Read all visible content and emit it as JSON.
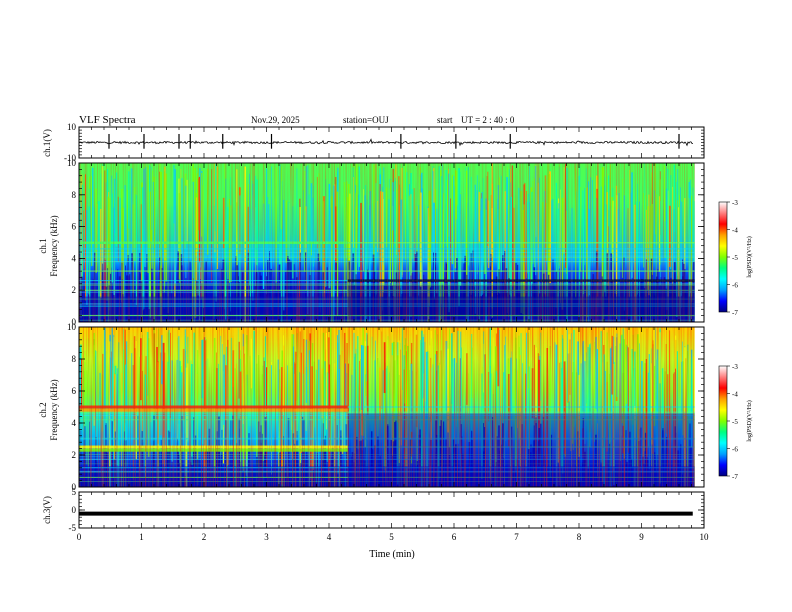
{
  "header": {
    "title": "VLF Spectra",
    "date": "Nov.29, 2025",
    "station": "station=OUJ",
    "start_label": "start",
    "start_ut": "UT =  2 : 40 : 0"
  },
  "colorscale": {
    "stops": [
      "#000080",
      "#0000ff",
      "#00a0ff",
      "#00ffff",
      "#00ff80",
      "#80ff00",
      "#ffff00",
      "#ffa000",
      "#ff0000",
      "#ff8080",
      "#ffffff"
    ]
  },
  "chart_data": [
    {
      "type": "line",
      "name": "ch1-waveform",
      "ylabel": "ch.1(V)",
      "ylim": [
        -10,
        10
      ],
      "yticks": [
        10,
        -10
      ],
      "series_desc": "broadband waveform, near zero with impulsive spikes",
      "spikes_min": [
        0.48,
        1.04,
        1.6,
        1.78,
        2.3,
        3.08,
        5.15,
        6.03,
        6.9,
        9.6
      ]
    },
    {
      "type": "heatmap",
      "name": "ch1-spectrogram",
      "ylabel": "ch.1\nFrequency (kHz)",
      "ylim": [
        0,
        10
      ],
      "yticks": [
        0,
        2,
        4,
        6,
        8,
        10
      ],
      "xlim_min": [
        0,
        9.85
      ],
      "z_label": "log(PSD)(V²/Hz)",
      "zlim": [
        -7,
        -3
      ],
      "z_ticks": [
        -3,
        -4,
        -5,
        -6,
        -7
      ],
      "bands_khz": [
        0.4,
        1.0,
        2.0,
        2.6,
        3.2,
        4.6,
        5.0
      ],
      "step_change_min": 4.3
    },
    {
      "type": "heatmap",
      "name": "ch2-spectrogram",
      "ylabel": "ch.2\nFrequency (kHz)",
      "ylim": [
        0,
        10
      ],
      "yticks": [
        0,
        2,
        4,
        6,
        8,
        10
      ],
      "xlim_min": [
        0,
        9.85
      ],
      "z_label": "log(PSD)(V²/Hz)",
      "zlim": [
        -7,
        -3
      ],
      "z_ticks": [
        -3,
        -4,
        -5,
        -6,
        -7
      ],
      "bands_khz": [
        0.6,
        1.2,
        2.5,
        3.0,
        4.2,
        5.0
      ],
      "step_change_min": 4.3
    },
    {
      "type": "line",
      "name": "ch3-waveform",
      "ylabel": "ch.3(V)",
      "ylim": [
        -5,
        5
      ],
      "yticks": [
        5,
        0,
        -5
      ],
      "level": -1,
      "xlabel": "Time (min)",
      "xlim": [
        0,
        10
      ],
      "xticks": [
        0,
        1,
        2,
        3,
        4,
        5,
        6,
        7,
        8,
        9,
        10
      ]
    }
  ]
}
